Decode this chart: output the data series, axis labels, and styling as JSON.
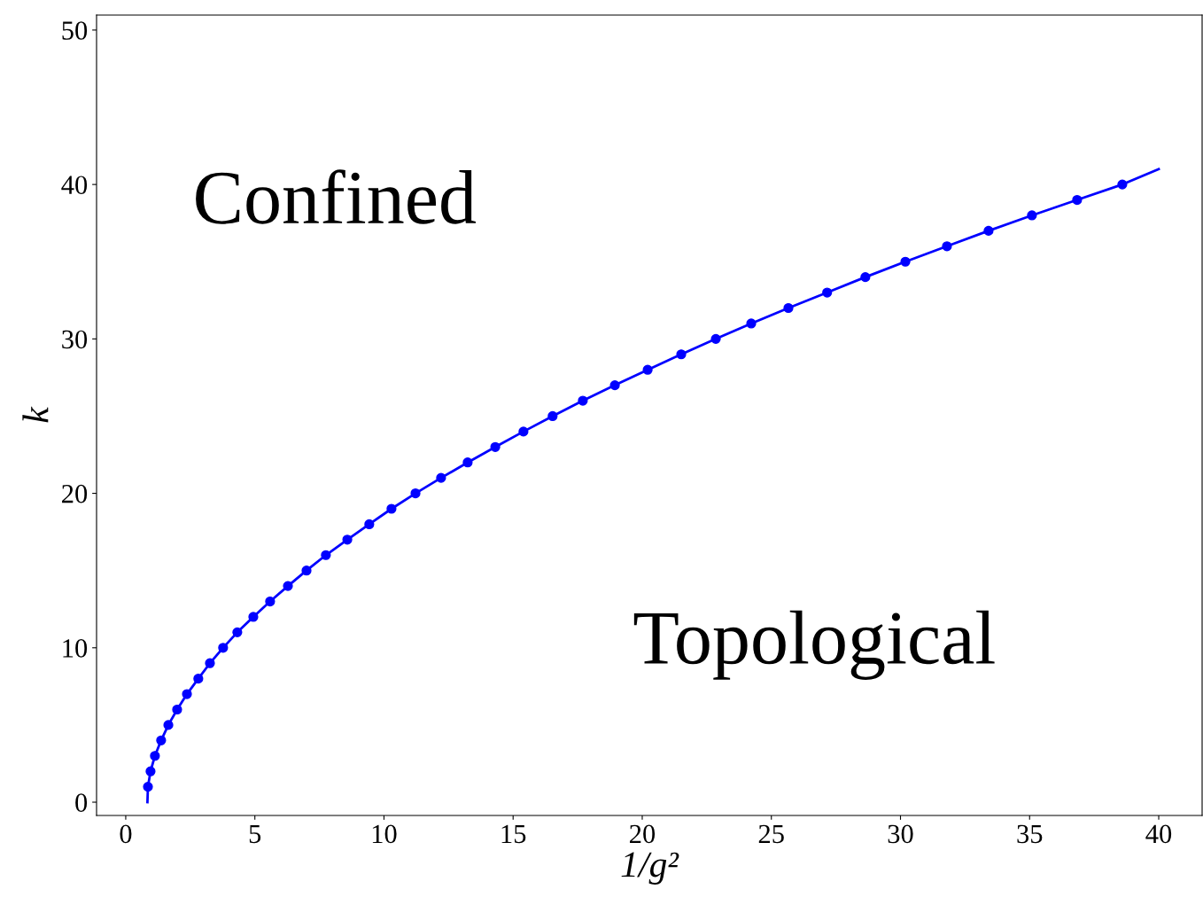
{
  "chart_data": {
    "type": "scatter",
    "xlabel": "1/g²",
    "ylabel": "k",
    "annotations": [
      "Confined",
      "Topological"
    ],
    "series": [
      {
        "type": "line",
        "color": "#0000ff",
        "marker": "none",
        "x": [
          0.84,
          0.86,
          0.96,
          1.13,
          1.37,
          1.65,
          1.99,
          2.37,
          2.81,
          3.26,
          3.77,
          4.32,
          4.94,
          5.59,
          6.28,
          7.0,
          7.75,
          8.58,
          9.43,
          10.29,
          11.22,
          12.21,
          13.24,
          14.31,
          15.4,
          16.53,
          17.7,
          18.94,
          20.21,
          21.51,
          22.85,
          24.22,
          25.66,
          27.16,
          28.64,
          30.19,
          31.8,
          33.41,
          35.09,
          36.84,
          38.59,
          40
        ],
        "values": [
          0,
          1,
          2,
          3,
          4,
          5,
          6,
          7,
          8,
          9,
          10,
          11,
          12,
          13,
          14,
          15,
          16,
          17,
          18,
          19,
          20,
          21,
          22,
          23,
          24,
          25,
          26,
          27,
          28,
          29,
          30,
          31,
          32,
          33,
          34,
          35,
          36,
          37,
          38,
          39,
          40,
          41
        ]
      },
      {
        "color": "#0000ff",
        "marker": "circle",
        "x": [
          0.86,
          0.96,
          1.13,
          1.37,
          1.65,
          1.99,
          2.37,
          2.81,
          3.26,
          3.77,
          4.32,
          4.94,
          5.59,
          6.28,
          7.0,
          7.75,
          8.58,
          9.43,
          10.29,
          11.22,
          12.21,
          13.24,
          14.31,
          15.4,
          16.53,
          17.7,
          18.94,
          20.21,
          21.51,
          22.85,
          24.22,
          25.66,
          27.16,
          28.64,
          30.19,
          31.8,
          33.41,
          35.09,
          36.84,
          38.59
        ],
        "values": [
          1,
          2,
          3,
          4,
          5,
          6,
          7,
          8,
          9,
          10,
          11,
          12,
          13,
          14,
          15,
          16,
          17,
          18,
          19,
          20,
          21,
          22,
          23,
          24,
          25,
          26,
          27,
          28,
          29,
          30,
          31,
          32,
          33,
          34,
          35,
          36,
          37,
          38,
          39,
          40
        ]
      }
    ],
    "xlim": [
      -1.13,
      41.68
    ],
    "ylim": [
      -0.86,
      50.97
    ],
    "xticks": [
      0,
      5,
      10,
      15,
      20,
      25,
      30,
      35,
      40
    ],
    "yticks": [
      0,
      10,
      20,
      30,
      40,
      50
    ],
    "grid": false,
    "legend": false
  }
}
